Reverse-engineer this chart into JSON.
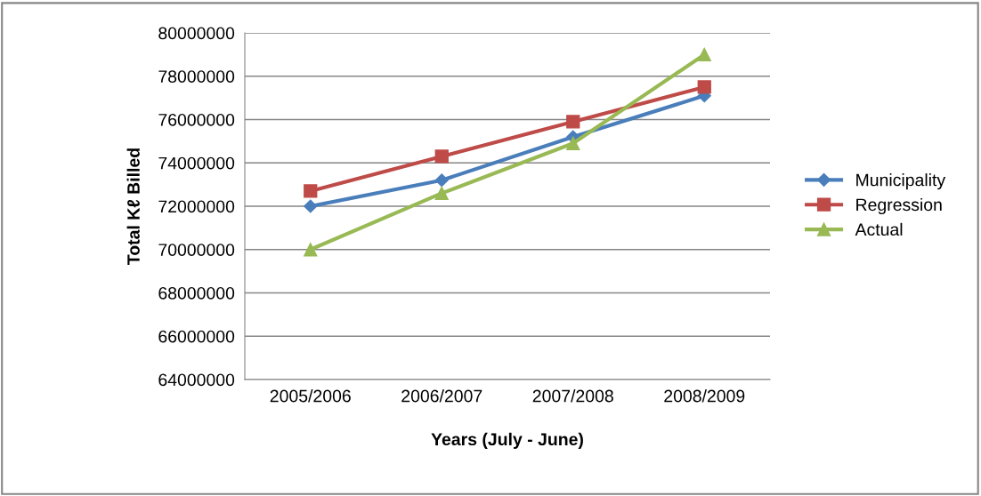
{
  "chart_data": {
    "type": "line",
    "xlabel": "Years (July - June)",
    "ylabel": "Total Kℓ Billed",
    "categories": [
      "2005/2006",
      "2006/2007",
      "2007/2008",
      "2008/2009"
    ],
    "series": [
      {
        "name": "Municipality",
        "color": "#4a7ebb",
        "marker": "diamond",
        "values": [
          72000000,
          73200000,
          75200000,
          77100000
        ]
      },
      {
        "name": "Regression",
        "color": "#be4b48",
        "marker": "square",
        "values": [
          72700000,
          74300000,
          75900000,
          77500000
        ]
      },
      {
        "name": "Actual",
        "color": "#98b954",
        "marker": "triangle",
        "values": [
          70000000,
          72600000,
          74900000,
          79000000
        ]
      }
    ],
    "ylim": [
      64000000,
      80000000
    ],
    "yticks": [
      64000000,
      66000000,
      68000000,
      70000000,
      72000000,
      74000000,
      76000000,
      78000000,
      80000000
    ],
    "grid": "y",
    "legend": "right",
    "line_style": "solid"
  }
}
